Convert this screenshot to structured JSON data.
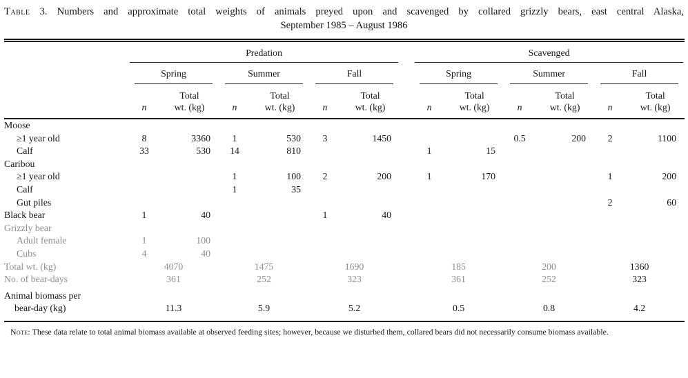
{
  "title": {
    "tag": "Table",
    "number": "3.",
    "line1": "Numbers and approximate total weights of animals preyed upon and scavenged by collared grizzly bears, east central Alaska,",
    "line2": "September 1985 – August 1986"
  },
  "table": {
    "groups": [
      {
        "label": "Predation",
        "seasons": [
          "Spring",
          "Summer",
          "Fall"
        ]
      },
      {
        "label": "Scavenged",
        "seasons": [
          "Spring",
          "Summer",
          "Fall"
        ]
      }
    ],
    "subcols": {
      "n": "n",
      "total": "Total",
      "wt": "wt. (kg)"
    },
    "rows": [
      {
        "type": "section",
        "label": "Moose"
      },
      {
        "type": "data",
        "label": "≥1 year old",
        "indent": true,
        "cells": [
          "8",
          "3360",
          "1",
          "530",
          "3",
          "1450",
          "",
          "",
          "0.5",
          "200",
          "2",
          "1100"
        ]
      },
      {
        "type": "data",
        "label": "Calf",
        "indent": true,
        "cells": [
          "33",
          "530",
          "14",
          "810",
          "",
          "",
          "1",
          "15",
          "",
          "",
          "",
          ""
        ]
      },
      {
        "type": "section",
        "label": "Caribou"
      },
      {
        "type": "data",
        "label": "≥1 year old",
        "indent": true,
        "cells": [
          "",
          "",
          "1",
          "100",
          "2",
          "200",
          "1",
          "170",
          "",
          "",
          "1",
          "200"
        ]
      },
      {
        "type": "data",
        "label": "Calf",
        "indent": true,
        "cells": [
          "",
          "",
          "1",
          "35",
          "",
          "",
          "",
          "",
          "",
          "",
          "",
          ""
        ]
      },
      {
        "type": "data",
        "label": "Gut piles",
        "indent": true,
        "cells": [
          "",
          "",
          "",
          "",
          "",
          "",
          "",
          "",
          "",
          "",
          "2",
          "60"
        ]
      },
      {
        "type": "data",
        "label": "Black bear",
        "cells": [
          "1",
          "40",
          "",
          "",
          "1",
          "40",
          "",
          "",
          "",
          "",
          "",
          ""
        ]
      },
      {
        "type": "section",
        "label": "Grizzly bear",
        "muted": true
      },
      {
        "type": "data",
        "label": "Adult female",
        "indent": true,
        "muted": true,
        "cells": [
          "1",
          "100",
          "",
          "",
          "",
          "",
          "",
          "",
          "",
          "",
          "",
          ""
        ]
      },
      {
        "type": "data",
        "label": "Cubs",
        "indent": true,
        "muted": true,
        "cells": [
          "4",
          "40",
          "",
          "",
          "",
          "",
          "",
          "",
          "",
          "",
          "",
          ""
        ]
      },
      {
        "type": "summary",
        "label": "Total wt. (kg)",
        "muted": true,
        "cells": [
          "4070",
          "1475",
          "1690",
          "185",
          "200",
          {
            "v": "1360",
            "dark": true
          }
        ]
      },
      {
        "type": "summary",
        "label": "No. of bear-days",
        "muted": true,
        "cells": [
          "361",
          "252",
          "323",
          "361",
          "252",
          {
            "v": "323",
            "dark": true
          }
        ]
      },
      {
        "type": "summary",
        "label": "Animal biomass per",
        "label2": "bear-day (kg)",
        "cells": [
          "11.3",
          "5.9",
          "5.2",
          "0.5",
          "0.8",
          "4.2"
        ]
      }
    ]
  },
  "note": {
    "tag": "Note:",
    "text": "These data relate to total animal biomass available at observed feeding sites; however, because we disturbed them, collared bears did not necessarily consume biomass available."
  }
}
